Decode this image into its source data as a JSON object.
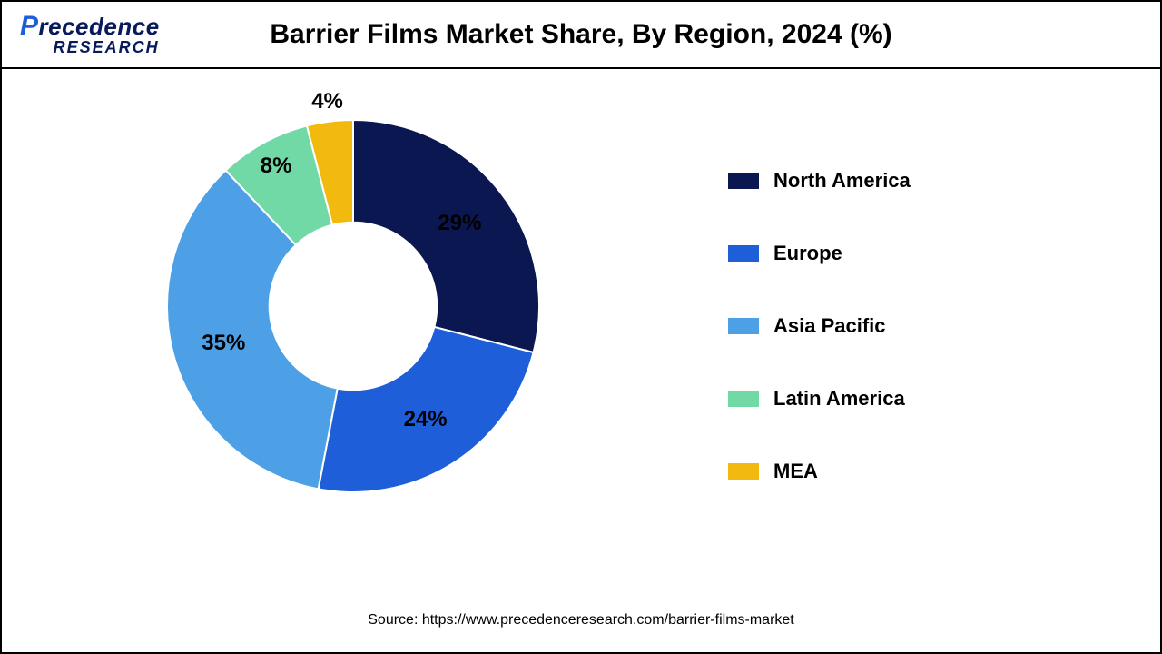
{
  "logo": {
    "line1_prefix": "P",
    "line1_rest": "recedence",
    "line2": "RESEARCH"
  },
  "title": "Barrier Films Market Share, By Region, 2024 (%)",
  "chart": {
    "type": "donut",
    "inner_radius_ratio": 0.45,
    "background_color": "#ffffff",
    "slices": [
      {
        "label": "North America",
        "value": 29,
        "color": "#0b1750",
        "display": "29%"
      },
      {
        "label": "Europe",
        "value": 24,
        "color": "#1e5fd9",
        "display": "24%"
      },
      {
        "label": "Asia Pacific",
        "value": 35,
        "color": "#4ea0e6",
        "display": "35%"
      },
      {
        "label": "Latin America",
        "value": 8,
        "color": "#70d9a6",
        "display": "8%"
      },
      {
        "label": "MEA",
        "value": 4,
        "color": "#f2b90f",
        "display": "4%"
      }
    ],
    "start_angle_deg": -90,
    "label_fontsize": 24,
    "label_fontweight": "bold",
    "slice_border_color": "#ffffff",
    "slice_border_width": 2,
    "legend_fontsize": 22,
    "legend_fontweight": "bold",
    "legend_swatch_w": 34,
    "legend_swatch_h": 18
  },
  "source": "Source: https://www.precedenceresearch.com/barrier-films-market"
}
